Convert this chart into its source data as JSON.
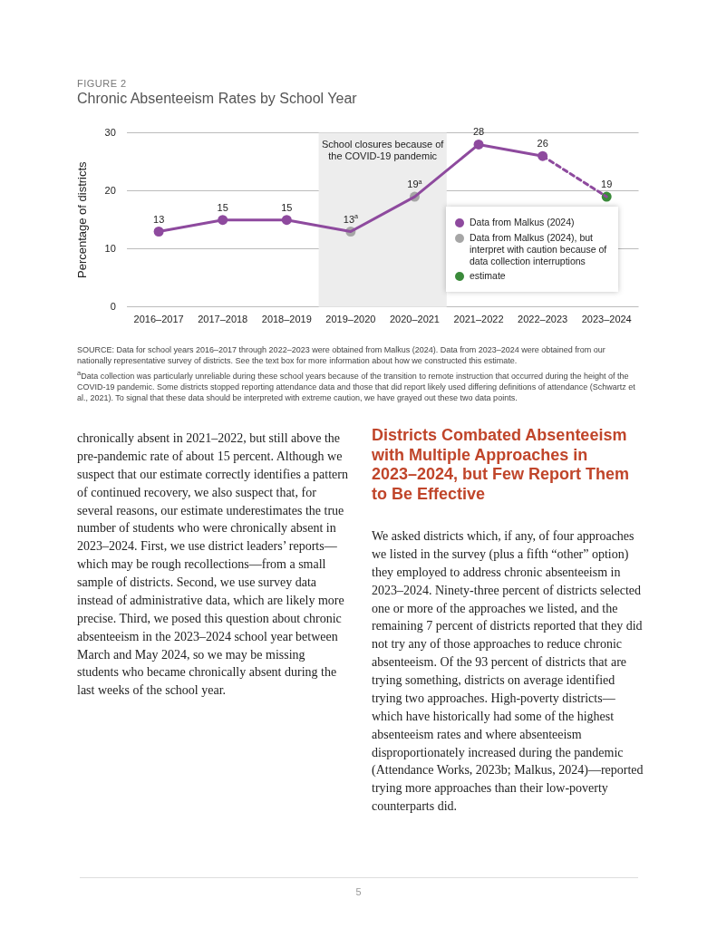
{
  "chart_data": {
    "type": "line",
    "title": "Chronic Absenteeism Rates by School Year",
    "ylabel": "Percentage of districts",
    "categories": [
      "2016–2017",
      "2017–2018",
      "2018–2019",
      "2019–2020",
      "2020–2021",
      "2021–2022",
      "2022–2023",
      "2023–2024"
    ],
    "series": [
      {
        "type": "line",
        "color": "#8e4a9e",
        "values": [
          13,
          15,
          15,
          13,
          19,
          28,
          26,
          null
        ],
        "marker": "none",
        "line_style": "solid"
      },
      {
        "type": "line",
        "color": "#8e4a9e",
        "values": [
          null,
          null,
          null,
          null,
          null,
          null,
          26,
          19
        ],
        "marker": "none",
        "line_style": "dashed"
      },
      {
        "type": "scatter",
        "name": "Data from Malkus (2024)",
        "color": "#8e4a9e",
        "values": [
          13,
          15,
          15,
          null,
          null,
          28,
          26,
          null
        ],
        "value_labels": [
          "13",
          "15",
          "15",
          null,
          null,
          "28",
          "26",
          null
        ]
      },
      {
        "type": "scatter",
        "name": "Data from Malkus (2024), but interpret with caution because of data collection interruptions",
        "color": "#a6a6a6",
        "values": [
          null,
          null,
          null,
          13,
          19,
          null,
          null,
          null
        ],
        "value_labels": [
          null,
          null,
          null,
          "13$^{a}$",
          "19$^{a}$",
          null,
          null,
          null
        ]
      },
      {
        "type": "scatter",
        "name": "estimate",
        "color": "#3a8a3a",
        "values": [
          null,
          null,
          null,
          null,
          null,
          null,
          null,
          19
        ],
        "value_labels": [
          null,
          null,
          null,
          null,
          null,
          null,
          null,
          "19"
        ]
      }
    ],
    "marker": "circle",
    "ylim": [
      0,
      30
    ],
    "yticks": [
      0,
      10,
      20,
      30
    ],
    "grid": "y",
    "legend": "bottom right",
    "bands": [
      {
        "axis": "x",
        "from": "2019–2020",
        "to": "2020–2021",
        "label": "School closures because of the COVID-19 pandemic",
        "color": "#ededed"
      }
    ],
    "annotations": [
      "FIGURE 2",
      "SOURCE: Data for school years 2016–2017 through 2022–2023 were obtained from Malkus (2024). Data from 2023–2024 were obtained from our nationally representative survey of districts. See the text box for more information about how we constructed this estimate.",
      "$^{a}$Data collection was particularly unreliable during these school years because of the transition to remote instruction that occurred during the height of the COVID-19 pandemic. Some districts stopped reporting attendance data and those that did report likely used differing definitions of attendance (Schwartz et al., 2021). To signal that these data should be interpreted with extreme caution, we have grayed out these two data points.",
      "chronically absent in 2021–2022, but still above the pre-pandemic rate of about 15 percent. Although we suspect that our estimate correctly identifies a pattern of continued recovery, we also suspect that, for several reasons, our estimate underestimates the true number of students who were chronically absent in 2023–2024. First, we use district leaders’ reports—which may be rough recollections—from a small sample of districts. Second, we use survey data instead of administrative data, which are likely more precise. Third, we posed this question about chronic absenteeism in the 2023–2024 school year between March and May 2024, so we may be missing students who became chronically absent during the last weeks of the school year.",
      "Districts Combated Absenteeism with Multiple Approaches in 2023–2024, but Few Report Them to Be Effective",
      "We asked districts which, if any, of four approaches we listed in the survey (plus a fifth “other” option) they employed to address chronic absenteeism in 2023–2024. Ninety-three percent of districts selected one or more of the approaches we listed, and the remaining 7 percent of districts reported that they did not try any of those approaches to reduce chronic absenteeism. Of the 93 percent of districts that are trying something, districts on average identified trying two approaches. High-poverty districts—which have historically had some of the highest absenteeism rates and where absenteeism disproportionately increased during the pandemic (Attendance Works, 2023b; Malkus, 2024)—reported trying more approaches than their low-poverty counterparts did.",
      "5"
    ]
  }
}
